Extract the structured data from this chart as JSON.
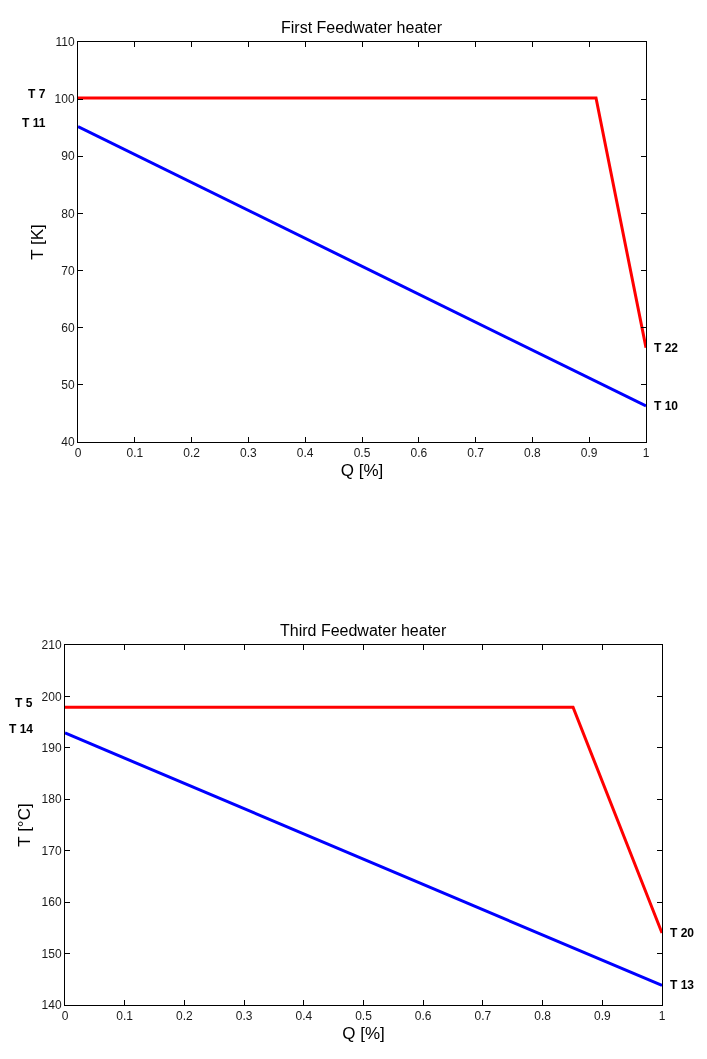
{
  "chart_data": [
    {
      "type": "line",
      "title": "First Feedwater heater",
      "xlabel": "Q [%]",
      "ylabel": "T [K]",
      "xlim": [
        0,
        1
      ],
      "xticks": [
        0,
        0.1,
        0.2,
        0.3,
        0.4,
        0.5,
        0.6,
        0.7,
        0.8,
        0.9,
        1
      ],
      "ylim": [
        40,
        110
      ],
      "yticks": [
        40,
        50,
        60,
        70,
        80,
        90,
        100,
        110
      ],
      "series": [
        {
          "color": "#ff0000",
          "x": [
            0,
            0.912,
            1
          ],
          "values": [
            100.2,
            100.2,
            56.5
          ]
        },
        {
          "color": "#0000ff",
          "x": [
            0,
            1
          ],
          "values": [
            95.2,
            46.3
          ]
        }
      ],
      "annotations": [
        "T 7",
        "T 11",
        "T 22",
        "T 10"
      ]
    },
    {
      "type": "line",
      "title": "Third Feedwater heater",
      "xlabel": "Q [%]",
      "ylabel": "T [°C]",
      "xlim": [
        0,
        1
      ],
      "xticks": [
        0,
        0.1,
        0.2,
        0.3,
        0.4,
        0.5,
        0.6,
        0.7,
        0.8,
        0.9,
        1
      ],
      "ylim": [
        140,
        210
      ],
      "yticks": [
        140,
        150,
        160,
        170,
        180,
        190,
        200,
        210
      ],
      "series": [
        {
          "color": "#ff0000",
          "x": [
            0,
            0.851,
            1
          ],
          "values": [
            197.9,
            197.9,
            154.0
          ]
        },
        {
          "color": "#0000ff",
          "x": [
            0,
            1
          ],
          "values": [
            192.9,
            143.8
          ]
        }
      ],
      "annotations": [
        "T 5",
        "T 14",
        "T 20",
        "T 13"
      ]
    }
  ]
}
